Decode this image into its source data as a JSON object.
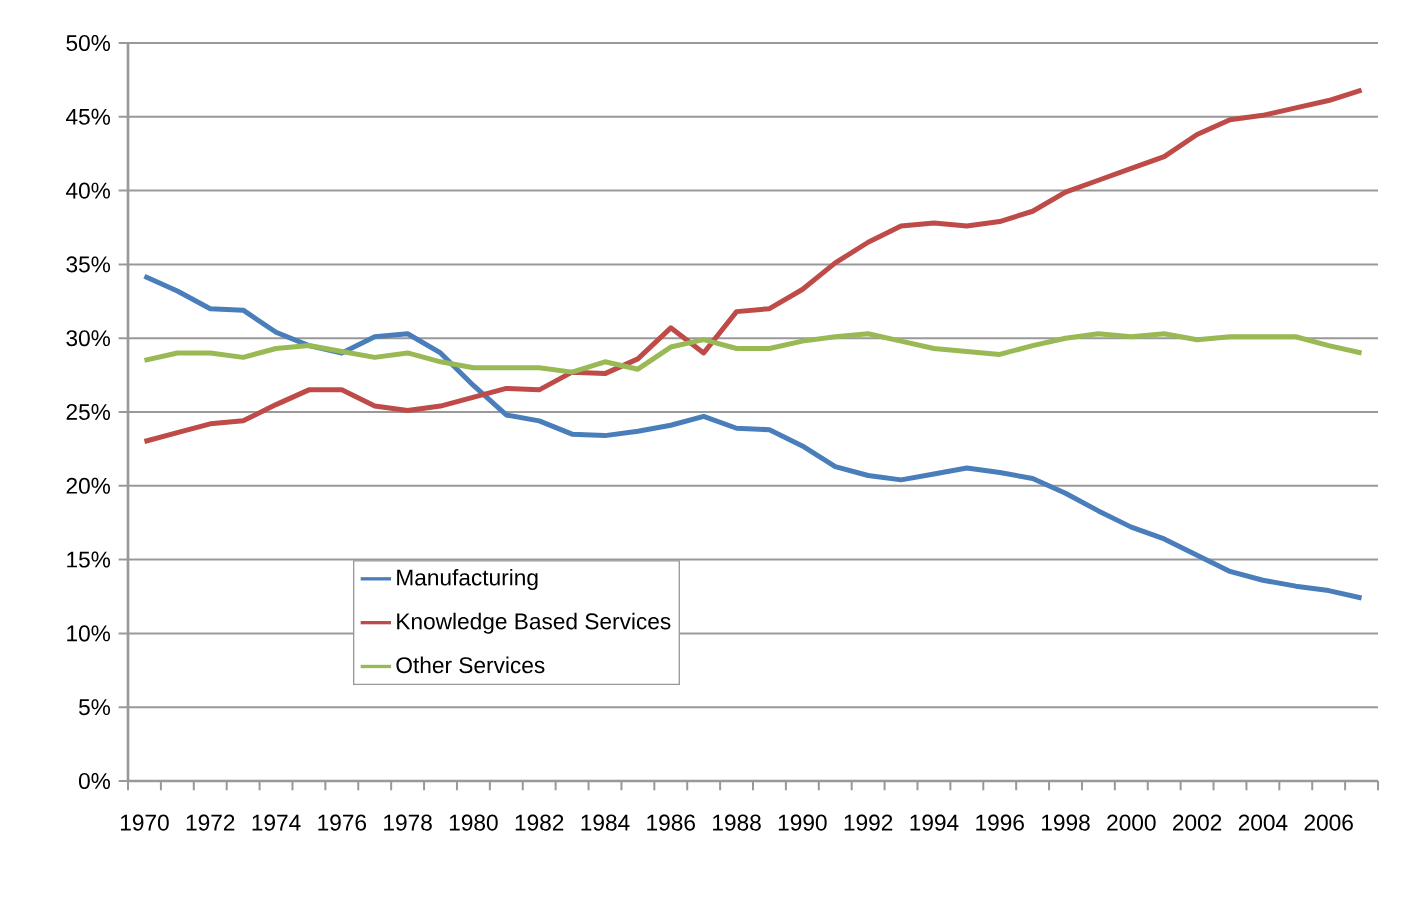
{
  "chart_data": {
    "type": "line",
    "categories": [
      "1970",
      null,
      "1972",
      null,
      "1974",
      null,
      "1976",
      null,
      "1978",
      null,
      "1980",
      null,
      "1982",
      null,
      "1984",
      null,
      "1986",
      null,
      "1988",
      null,
      "1990",
      null,
      "1992",
      null,
      "1994",
      null,
      "1996",
      null,
      "1998",
      null,
      "2000",
      null,
      "2002",
      null,
      "2004",
      null,
      "2006",
      null
    ],
    "series": [
      {
        "name": "Manufacturing",
        "color": "#4a7ebb",
        "values": [
          34.2,
          33.2,
          32.0,
          31.9,
          30.4,
          29.5,
          29.0,
          30.1,
          30.3,
          29.0,
          26.8,
          24.8,
          24.4,
          23.5,
          23.4,
          23.7,
          24.1,
          24.7,
          23.9,
          23.8,
          22.7,
          21.3,
          20.7,
          20.4,
          20.8,
          21.2,
          20.9,
          20.5,
          19.5,
          18.3,
          17.2,
          16.4,
          15.3,
          14.2,
          13.6,
          13.2,
          12.9,
          12.4
        ]
      },
      {
        "name": "Knowledge Based Services",
        "color": "#be4b48",
        "values": [
          23.0,
          23.6,
          24.2,
          24.4,
          25.5,
          26.5,
          26.5,
          25.4,
          25.1,
          25.4,
          26.0,
          26.6,
          26.5,
          27.7,
          27.6,
          28.6,
          30.7,
          29.0,
          31.8,
          32.0,
          33.3,
          35.1,
          36.5,
          37.6,
          37.8,
          37.6,
          37.9,
          38.6,
          39.9,
          40.7,
          41.5,
          42.3,
          43.8,
          44.8,
          45.1,
          45.6,
          46.1,
          46.8
        ]
      },
      {
        "name": "Other Services",
        "color": "#98b954",
        "values": [
          28.5,
          29.0,
          29.0,
          28.7,
          29.3,
          29.5,
          29.1,
          28.7,
          29.0,
          28.4,
          28.0,
          28.0,
          28.0,
          27.7,
          28.4,
          27.9,
          29.4,
          29.9,
          29.3,
          29.3,
          29.8,
          30.1,
          30.3,
          29.8,
          29.3,
          29.1,
          28.9,
          29.5,
          30.0,
          30.3,
          30.1,
          30.3,
          29.9,
          30.1,
          30.1,
          30.1,
          29.5,
          29.0
        ]
      }
    ],
    "ylim": [
      0,
      50
    ],
    "yticks": [
      {
        "value": 0,
        "label": "0%"
      },
      {
        "value": 5,
        "label": "5%"
      },
      {
        "value": 10,
        "label": "10%"
      },
      {
        "value": 15,
        "label": "15%"
      },
      {
        "value": 20,
        "label": "20%"
      },
      {
        "value": 25,
        "label": "25%"
      },
      {
        "value": 30,
        "label": "30%"
      },
      {
        "value": 35,
        "label": "35%"
      },
      {
        "value": 40,
        "label": "40%"
      },
      {
        "value": 45,
        "label": "45%"
      },
      {
        "value": 50,
        "label": "50%"
      }
    ],
    "grid": "y",
    "legend": "bottom left"
  }
}
